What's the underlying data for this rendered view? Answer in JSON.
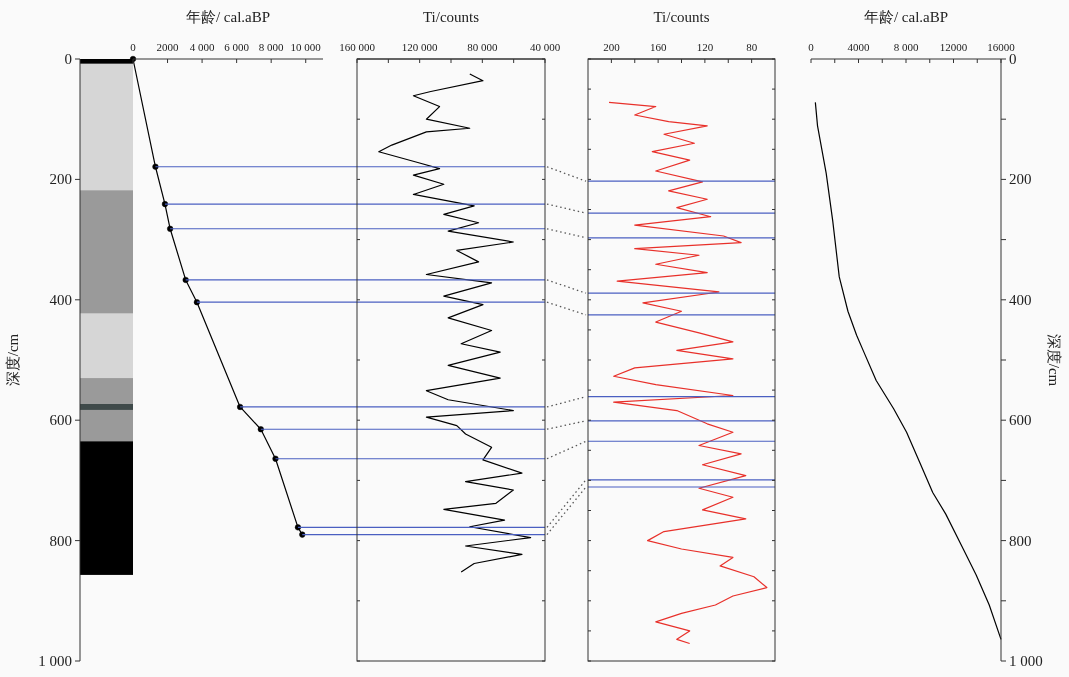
{
  "chart_data": [
    {
      "type": "bar",
      "stacked": true,
      "categories": [
        null
      ],
      "ylabel": "深度/cm",
      "ylim": [
        1000,
        0
      ],
      "yticks": [
        0,
        200,
        400,
        600,
        800,
        {
          "value": 1000,
          "label": "1 000"
        }
      ],
      "tick_labels": "y",
      "series": [
        {
          "color": "#000000",
          "values": [
            8
          ]
        },
        {
          "color": "#d6d6d6",
          "values": [
            210
          ]
        },
        {
          "color": "#9a9a9a",
          "values": [
            205
          ]
        },
        {
          "color": "#d6d6d6",
          "values": [
            107
          ]
        },
        {
          "color": "#9a9a9a",
          "values": [
            43
          ]
        },
        {
          "color": "#3f4a4a",
          "values": [
            10
          ]
        },
        {
          "color": "#9a9a9a",
          "values": [
            52
          ]
        },
        {
          "color": "#000000",
          "values": [
            222
          ]
        }
      ]
    },
    {
      "type": "line",
      "xlabel": "年龄/ cal.aBP",
      "xlim": [
        0,
        11000
      ],
      "xticks": [
        0,
        2000,
        {
          "value": 4000,
          "label": "4 000"
        },
        {
          "value": 6000,
          "label": "6 000"
        },
        {
          "value": 8000,
          "label": "8 000"
        },
        {
          "value": 10000,
          "label": "10 000"
        }
      ],
      "ylim": [
        1000,
        0
      ],
      "tick_labels": "x",
      "marker": "circle",
      "series": [
        {
          "color": "#000000",
          "x": [
            0,
            1300,
            1850,
            2150,
            3050,
            3700,
            6200,
            7400,
            8250,
            9550,
            9800
          ],
          "values": [
            0,
            179,
            241,
            282,
            367,
            404,
            578,
            615,
            664,
            778,
            790
          ]
        }
      ],
      "ref_lines": [
        {
          "axis": "y",
          "value": 179,
          "color": "#4a5fc1"
        },
        {
          "axis": "y",
          "value": 241,
          "color": "#4a5fc1"
        },
        {
          "axis": "y",
          "value": 282,
          "color": "#4a5fc1"
        },
        {
          "axis": "y",
          "value": 367,
          "color": "#4a5fc1"
        },
        {
          "axis": "y",
          "value": 404,
          "color": "#4a5fc1"
        },
        {
          "axis": "y",
          "value": 578,
          "color": "#4a5fc1"
        },
        {
          "axis": "y",
          "value": 615,
          "color": "#4a5fc1"
        },
        {
          "axis": "y",
          "value": 664,
          "color": "#4a5fc1"
        },
        {
          "axis": "y",
          "value": 778,
          "color": "#4a5fc1"
        },
        {
          "axis": "y",
          "value": 790,
          "color": "#4a5fc1"
        }
      ]
    },
    {
      "type": "line",
      "xlabel": "Ti/counts",
      "xlim": [
        160000,
        40000
      ],
      "xticks": [
        {
          "value": 160000,
          "label": "160 000"
        },
        {
          "value": 140000,
          "label": null
        },
        {
          "value": 120000,
          "label": "120 000"
        },
        {
          "value": 100000,
          "label": null
        },
        {
          "value": 80000,
          "label": "80 000"
        },
        {
          "value": 60000,
          "label": null
        },
        {
          "value": 40000,
          "label": "40 000"
        }
      ],
      "ylim": [
        1000,
        0
      ],
      "yticks": [
        0,
        100,
        200,
        300,
        400,
        500,
        600,
        700,
        800,
        900,
        1000
      ],
      "tick_labels": "x",
      "series": [
        {
          "color": "#000000",
          "x": [
            88000,
            79600,
            112900,
            124000,
            107300,
            115700,
            88000,
            115700,
            137800,
            146100,
            121200,
            107300,
            124000,
            104600,
            124000,
            85200,
            104600,
            82400,
            101800,
            60200,
            96300,
            82400,
            115700,
            74100,
            104600,
            79600,
            101800,
            74100,
            93500,
            68600,
            101800,
            68600,
            115700,
            101800,
            60200,
            115700,
            96300,
            90700,
            74100,
            79600,
            54700,
            90700,
            60200,
            71300,
            104600,
            65800,
            88000,
            49200,
            90700,
            54700,
            85200,
            93500
          ],
          "values": [
            25,
            36,
            54,
            61,
            79,
            100,
            115,
            121,
            143,
            154,
            172,
            182,
            193,
            208,
            225,
            244,
            258,
            272,
            286,
            304,
            318,
            337,
            358,
            372,
            394,
            408,
            430,
            451,
            473,
            487,
            509,
            530,
            551,
            566,
            584,
            595,
            609,
            623,
            645,
            666,
            688,
            702,
            716,
            738,
            748,
            766,
            777,
            795,
            809,
            823,
            838,
            852
          ]
        }
      ],
      "ref_lines": [
        {
          "axis": "y",
          "value": 179,
          "color": "#4a5fc1"
        },
        {
          "axis": "y",
          "value": 241,
          "color": "#4a5fc1"
        },
        {
          "axis": "y",
          "value": 282,
          "color": "#4a5fc1"
        },
        {
          "axis": "y",
          "value": 367,
          "color": "#4a5fc1"
        },
        {
          "axis": "y",
          "value": 404,
          "color": "#4a5fc1"
        },
        {
          "axis": "y",
          "value": 578,
          "color": "#4a5fc1"
        },
        {
          "axis": "y",
          "value": 615,
          "color": "#4a5fc1"
        },
        {
          "axis": "y",
          "value": 664,
          "color": "#4a5fc1"
        },
        {
          "axis": "y",
          "value": 778,
          "color": "#4a5fc1"
        },
        {
          "axis": "y",
          "value": 790,
          "color": "#4a5fc1"
        }
      ]
    },
    {
      "type": "line",
      "xlabel": "Ti/counts",
      "xlim": [
        220,
        60
      ],
      "xticks": [
        {
          "value": 200,
          "label": "200"
        },
        {
          "value": 180,
          "label": null
        },
        {
          "value": 160,
          "label": "160"
        },
        {
          "value": 140,
          "label": null
        },
        {
          "value": 120,
          "label": "120"
        },
        {
          "value": 100,
          "label": null
        },
        {
          "value": 80,
          "label": "80"
        }
      ],
      "ylim": [
        1000,
        0
      ],
      "yticks": [
        0,
        50,
        100,
        150,
        200,
        250,
        300,
        350,
        400,
        450,
        500,
        550,
        600,
        650,
        700,
        750,
        800,
        850,
        900,
        950,
        1000
      ],
      "tick_labels": "x",
      "series": [
        {
          "color": "#e8302a",
          "x": [
            202,
            162,
            180,
            151,
            118,
            155,
            129,
            165,
            133,
            162,
            122,
            151,
            118,
            144,
            115,
            180,
            104,
            89,
            180,
            125,
            162,
            118,
            195,
            108,
            173,
            140,
            162,
            125,
            96,
            144,
            96,
            180,
            198,
            162,
            96,
            198,
            144,
            118,
            96,
            125,
            89,
            122,
            85,
            125,
            96,
            122,
            85,
            155,
            169,
            140,
            96,
            107,
            78,
            67,
            96,
            111,
            140,
            162,
            133,
            144,
            133
          ],
          "values": [
            72,
            79,
            93,
            104,
            111,
            125,
            140,
            154,
            168,
            186,
            204,
            219,
            233,
            247,
            262,
            276,
            294,
            305,
            315,
            326,
            341,
            355,
            369,
            387,
            405,
            419,
            437,
            455,
            470,
            484,
            498,
            513,
            527,
            541,
            559,
            570,
            584,
            606,
            620,
            642,
            656,
            674,
            692,
            713,
            728,
            749,
            764,
            785,
            800,
            814,
            828,
            842,
            860,
            878,
            892,
            907,
            921,
            935,
            950,
            964,
            971
          ]
        }
      ],
      "ref_lines": [
        {
          "axis": "y",
          "value": 203,
          "color": "#4a5fc1"
        },
        {
          "axis": "y",
          "value": 256,
          "color": "#4a5fc1"
        },
        {
          "axis": "y",
          "value": 297,
          "color": "#4a5fc1"
        },
        {
          "axis": "y",
          "value": 389,
          "color": "#4a5fc1"
        },
        {
          "axis": "y",
          "value": 425,
          "color": "#4a5fc1"
        },
        {
          "axis": "y",
          "value": 561,
          "color": "#4a5fc1"
        },
        {
          "axis": "y",
          "value": 601,
          "color": "#4a5fc1"
        },
        {
          "axis": "y",
          "value": 635,
          "color": "#4a5fc1"
        },
        {
          "axis": "y",
          "value": 699,
          "color": "#4a5fc1"
        },
        {
          "axis": "y",
          "value": 711,
          "color": "#4a5fc1"
        }
      ]
    },
    {
      "type": "line",
      "xlabel": "年龄/ cal.aBP",
      "ylabel": "深度/cm",
      "xlim": [
        0,
        16000
      ],
      "xticks": [
        0,
        {
          "value": 2000,
          "label": null
        },
        4000,
        {
          "value": 6000,
          "label": null
        },
        {
          "value": 8000,
          "label": "8 000"
        },
        {
          "value": 10000,
          "label": null
        },
        12000,
        {
          "value": 14000,
          "label": null
        },
        16000
      ],
      "ylim": [
        1000,
        0
      ],
      "yticks": [
        0,
        {
          "value": 100,
          "label": null
        },
        200,
        {
          "value": 300,
          "label": null
        },
        400,
        {
          "value": 500,
          "label": null
        },
        600,
        {
          "value": 700,
          "label": null
        },
        800,
        {
          "value": 900,
          "label": null
        },
        {
          "value": 1000,
          "label": "1 000"
        }
      ],
      "series": [
        {
          "color": "#000000",
          "x": [
            366,
            550,
            1280,
            1830,
            2380,
            3110,
            3840,
            4390,
            5490,
            6960,
            8050,
            9150,
            10250,
            11350,
            12820,
            13910,
            15010,
            16000
          ],
          "values": [
            72,
            111,
            190,
            269,
            362,
            419,
            459,
            484,
            534,
            581,
            620,
            670,
            720,
            756,
            814,
            857,
            907,
            964
          ]
        }
      ]
    }
  ]
}
